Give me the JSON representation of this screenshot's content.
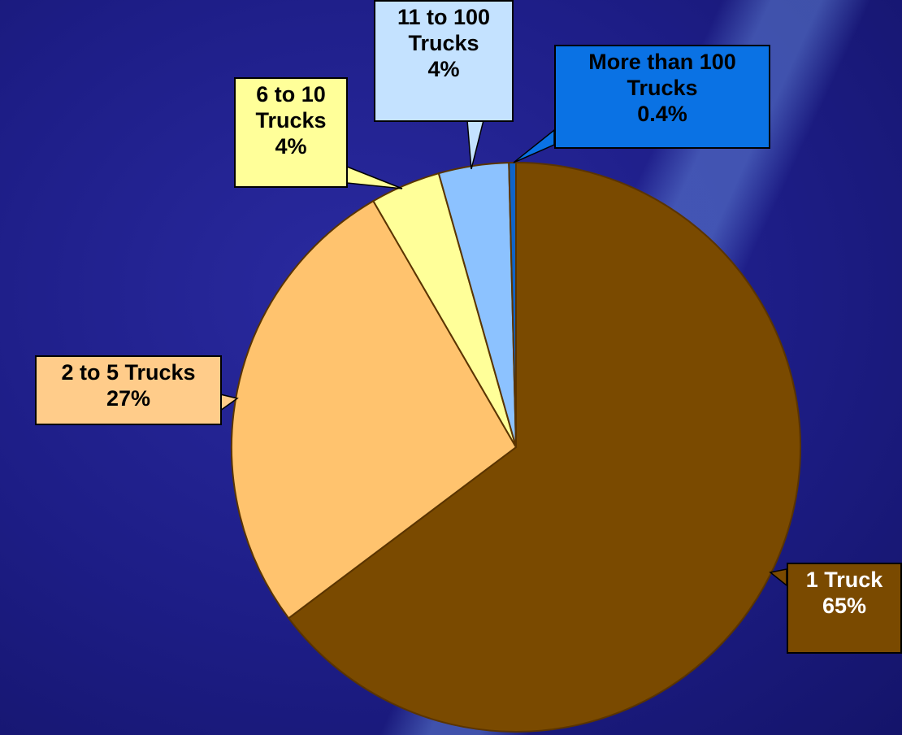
{
  "chart_data": {
    "type": "pie",
    "categories": [
      "1 Truck",
      "2 to 5 Trucks",
      "6 to 10 Trucks",
      "11 to 100 Trucks",
      "More than 100 Trucks"
    ],
    "values": [
      65,
      27,
      4,
      4,
      0.4
    ],
    "value_labels": [
      "65%",
      "27%",
      "4%",
      "4%",
      "0.4%"
    ],
    "colors": [
      "#7a4a00",
      "#ffc36e",
      "#ffff99",
      "#8cc2ff",
      "#1064c8"
    ]
  }
}
